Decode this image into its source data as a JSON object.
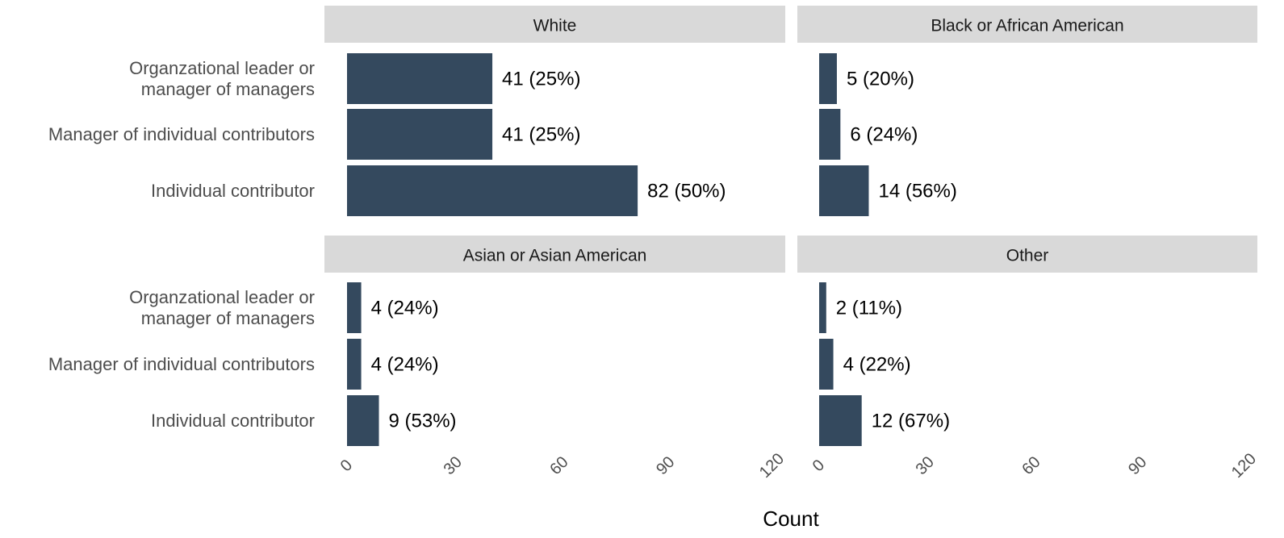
{
  "xlabel": "Count",
  "chart_data": [
    {
      "type": "bar",
      "title": "White",
      "categories": [
        "Organzational leader or\nmanager of managers",
        "Manager of individual contributors",
        "Individual contributor"
      ],
      "values": [
        41,
        41,
        82
      ],
      "value_labels": [
        "41 (25%)",
        "41 (25%)",
        "82 (50%)"
      ],
      "color": "#34495e",
      "xlim": [
        0,
        120
      ]
    },
    {
      "type": "bar",
      "title": "Black or African American",
      "values": [
        5,
        6,
        14
      ],
      "value_labels": [
        "5 (20%)",
        "6 (24%)",
        "14 (56%)"
      ],
      "color": "#34495e",
      "xlim": [
        0,
        120
      ]
    },
    {
      "type": "bar",
      "title": "Asian or Asian American",
      "categories": [
        "Organzational leader or\nmanager of managers",
        "Manager of individual contributors",
        "Individual contributor"
      ],
      "values": [
        4,
        4,
        9
      ],
      "value_labels": [
        "4 (24%)",
        "4 (24%)",
        "9 (53%)"
      ],
      "color": "#34495e",
      "xlim": [
        0,
        120
      ],
      "xticks": [
        0,
        30,
        60,
        90,
        120
      ]
    },
    {
      "type": "bar",
      "title": "Other",
      "values": [
        2,
        4,
        12
      ],
      "value_labels": [
        "2 (11%)",
        "4 (22%)",
        "12 (67%)"
      ],
      "color": "#34495e",
      "xlim": [
        0,
        120
      ],
      "xticks": [
        0,
        30,
        60,
        90,
        120
      ]
    }
  ]
}
